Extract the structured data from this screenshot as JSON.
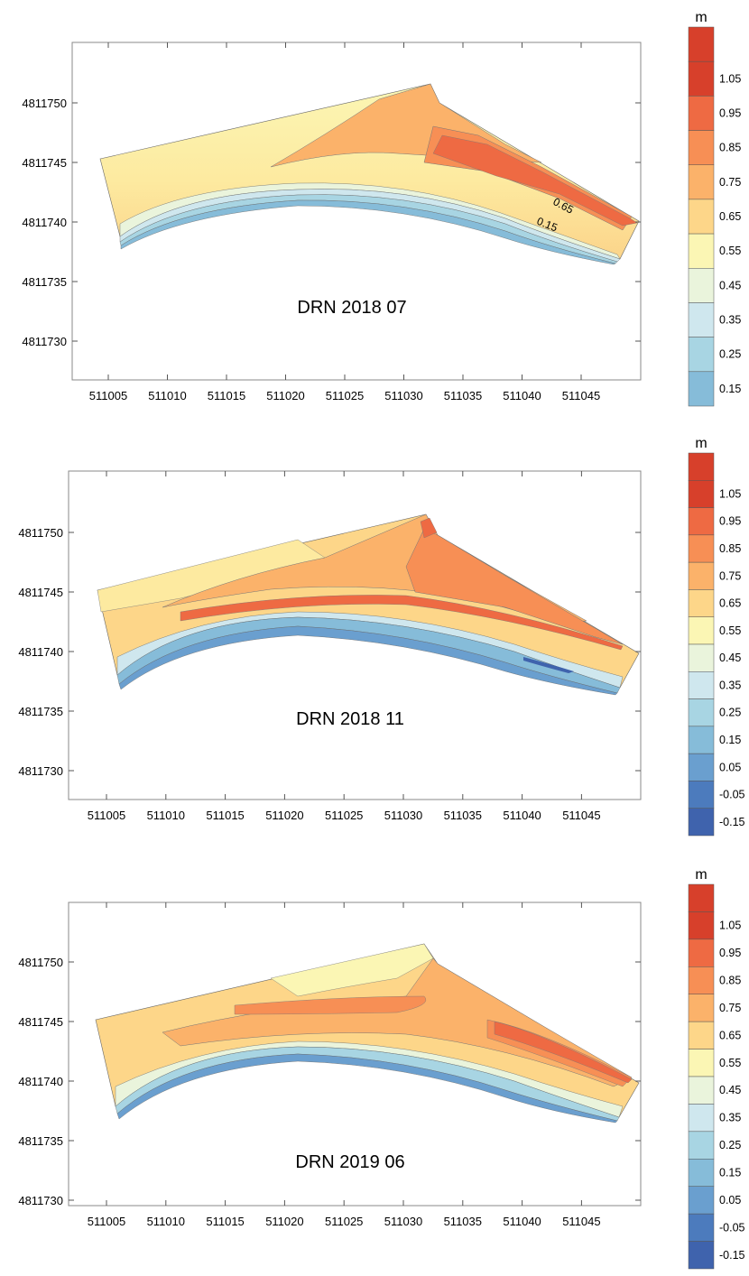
{
  "panels": [
    {
      "title": "DRN 2018 07",
      "contour_labels": [
        "0.65",
        "0.15"
      ],
      "colorbar": {
        "unit": "m",
        "ticks": [
          "1.05",
          "0.95",
          "0.85",
          "0.75",
          "0.65",
          "0.55",
          "0.45",
          "0.35",
          "0.25",
          "0.15"
        ],
        "colors": [
          "#d7402b",
          "#ee6a43",
          "#f78f55",
          "#fbb26a",
          "#fdd689",
          "#fbf6b4",
          "#eaf4dc",
          "#cfe7ee",
          "#a8d5e3",
          "#86bcd9"
        ]
      }
    },
    {
      "title": "DRN 2018 11",
      "colorbar": {
        "unit": "m",
        "ticks": [
          "1.05",
          "0.95",
          "0.85",
          "0.75",
          "0.65",
          "0.55",
          "0.45",
          "0.35",
          "0.25",
          "0.15",
          "0.05",
          "-0.05",
          "-0.15"
        ],
        "colors": [
          "#d7402b",
          "#ee6a43",
          "#f78f55",
          "#fbb26a",
          "#fdd689",
          "#fbf6b4",
          "#eaf4dc",
          "#cfe7ee",
          "#a8d5e3",
          "#86bcd9",
          "#6a9fcf",
          "#4c7bbd",
          "#3f63ad"
        ]
      }
    },
    {
      "title": "DRN 2019 06",
      "colorbar": {
        "unit": "m",
        "ticks": [
          "1.05",
          "0.95",
          "0.85",
          "0.75",
          "0.65",
          "0.55",
          "0.45",
          "0.35",
          "0.25",
          "0.15",
          "0.05",
          "-0.05",
          "-0.15"
        ],
        "colors": [
          "#d7402b",
          "#ee6a43",
          "#f78f55",
          "#fbb26a",
          "#fdd689",
          "#fbf6b4",
          "#eaf4dc",
          "#cfe7ee",
          "#a8d5e3",
          "#86bcd9",
          "#6a9fcf",
          "#4c7bbd",
          "#3f63ad"
        ]
      }
    }
  ],
  "axes": {
    "x_ticks": [
      "511005",
      "511010",
      "511015",
      "511020",
      "511025",
      "511030",
      "511035",
      "511040",
      "511045"
    ],
    "y_ticks": [
      "4811750",
      "4811745",
      "4811740",
      "4811735",
      "4811730"
    ]
  }
}
